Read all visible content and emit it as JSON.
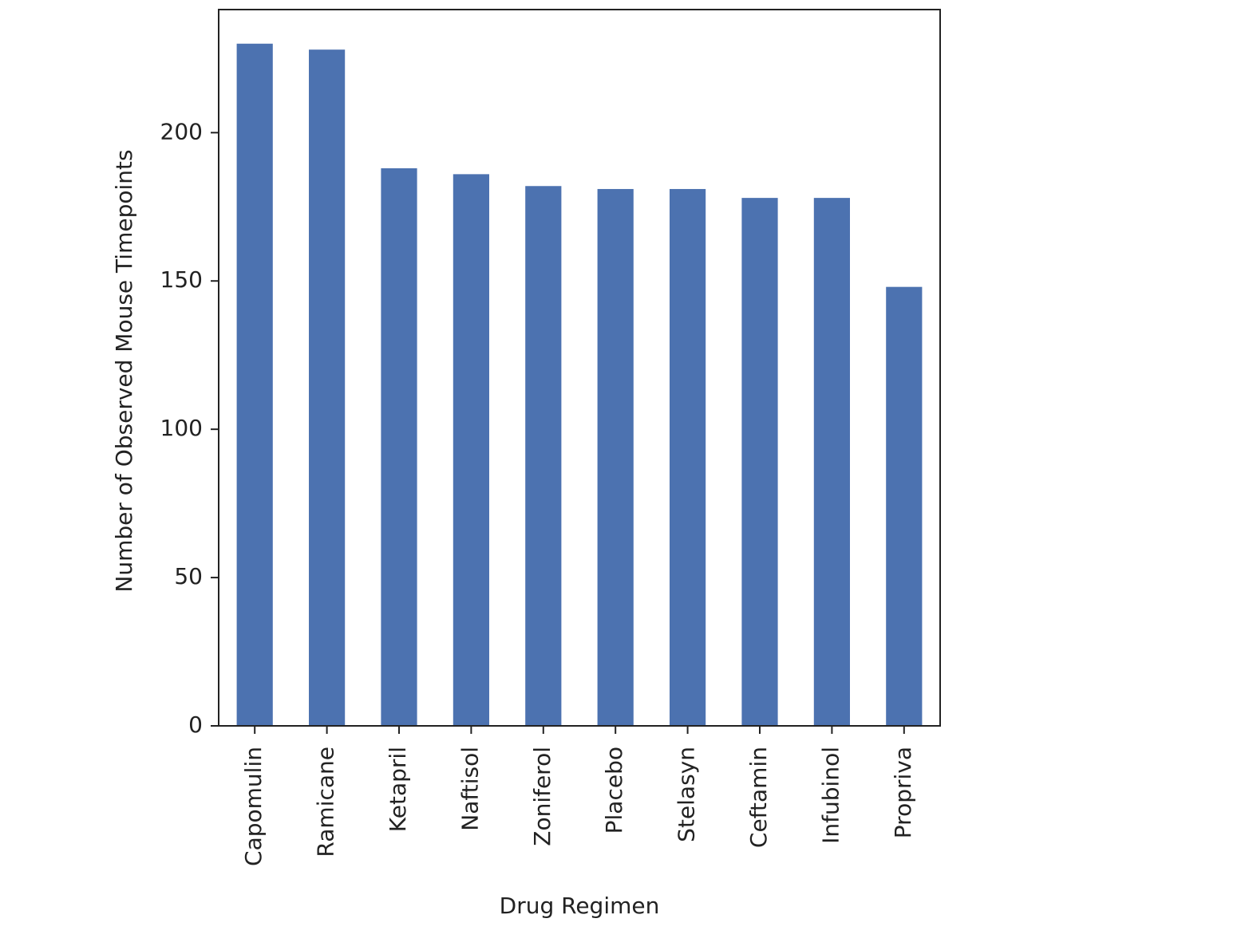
{
  "colors": {
    "bar": "#4c72b0",
    "axis": "#222222",
    "background": "#ffffff"
  },
  "chart_data": {
    "type": "bar",
    "title": "",
    "xlabel": "Drug Regimen",
    "ylabel": "Number of Observed Mouse Timepoints",
    "categories": [
      "Capomulin",
      "Ramicane",
      "Ketapril",
      "Naftisol",
      "Zoniferol",
      "Placebo",
      "Stelasyn",
      "Ceftamin",
      "Infubinol",
      "Propriva"
    ],
    "values": [
      230,
      228,
      188,
      186,
      182,
      181,
      181,
      178,
      178,
      148
    ],
    "ylim": [
      0,
      241.5
    ],
    "yticks": [
      0,
      50,
      100,
      150,
      200
    ],
    "grid": false,
    "legend": false
  }
}
